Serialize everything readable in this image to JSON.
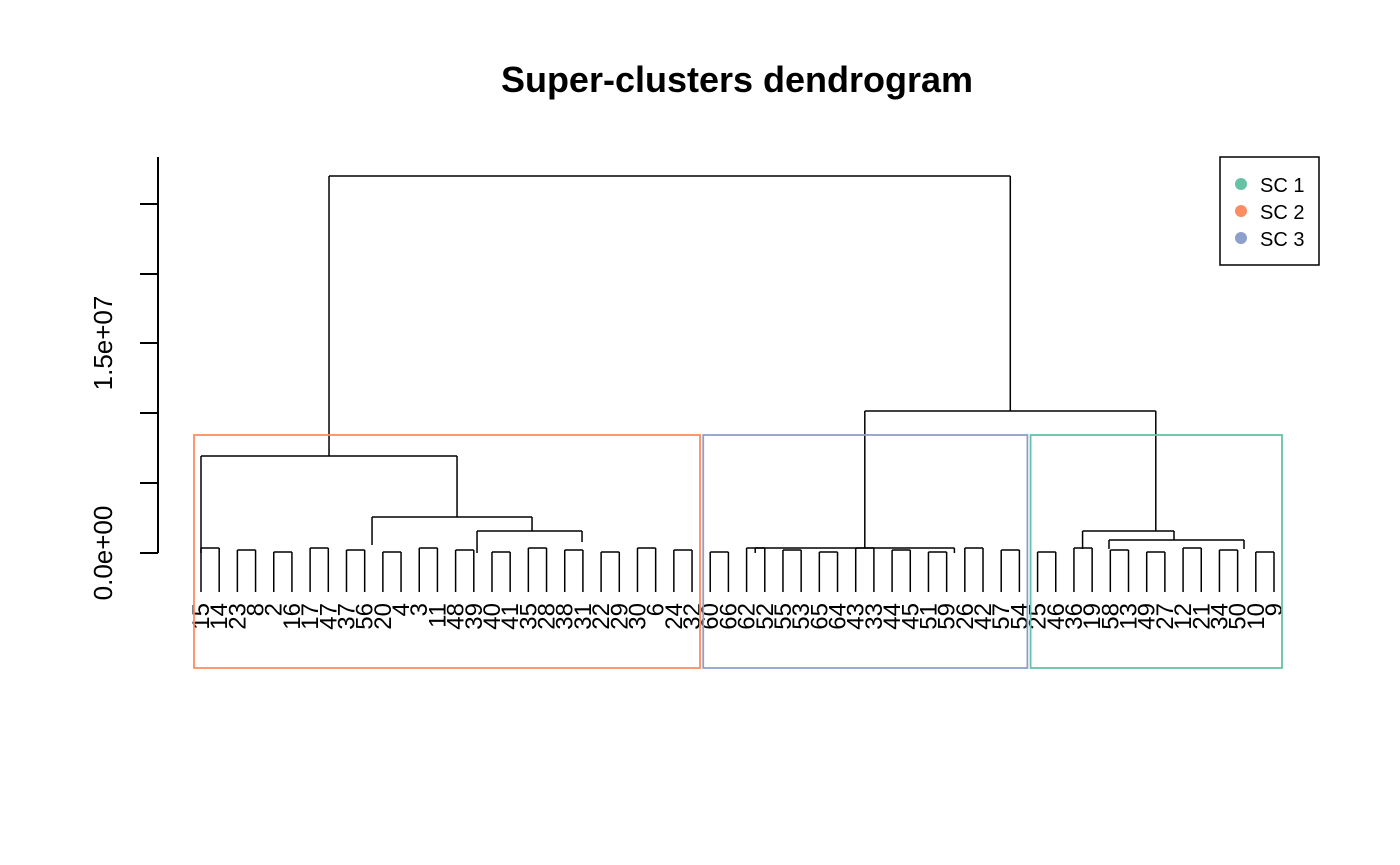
{
  "chart_data": {
    "type": "dendrogram",
    "title": "Super-clusters dendrogram",
    "y_ticks": [
      "0.0e+00",
      "1.5e+07"
    ],
    "legend": {
      "position": "top-right",
      "entries": [
        {
          "label": "SC 1",
          "color": "#66c2a5"
        },
        {
          "label": "SC 2",
          "color": "#fc8d62"
        },
        {
          "label": "SC 3",
          "color": "#8da0cb"
        }
      ]
    },
    "leaves": [
      "15",
      "14",
      "23",
      "8",
      "2",
      "16",
      "17",
      "47",
      "37",
      "56",
      "20",
      "4",
      "3",
      "11",
      "48",
      "39",
      "40",
      "41",
      "35",
      "28",
      "38",
      "31",
      "22",
      "29",
      "30",
      "6",
      "24",
      "32",
      "60",
      "66",
      "62",
      "52",
      "55",
      "53",
      "65",
      "64",
      "43",
      "33",
      "44",
      "45",
      "51",
      "59",
      "26",
      "42",
      "57",
      "54",
      "25",
      "46",
      "36",
      "19",
      "58",
      "13",
      "49",
      "27",
      "12",
      "21",
      "34",
      "50",
      "10",
      "9"
    ],
    "clusters": [
      {
        "label": "SC 2",
        "color": "#fc8d62",
        "leaf_from": 0,
        "leaf_to": 27
      },
      {
        "label": "SC 3",
        "color": "#8da0cb",
        "leaf_from": 28,
        "leaf_to": 45
      },
      {
        "label": "SC 1",
        "color": "#66c2a5",
        "leaf_from": 46,
        "leaf_to": 59
      }
    ]
  }
}
